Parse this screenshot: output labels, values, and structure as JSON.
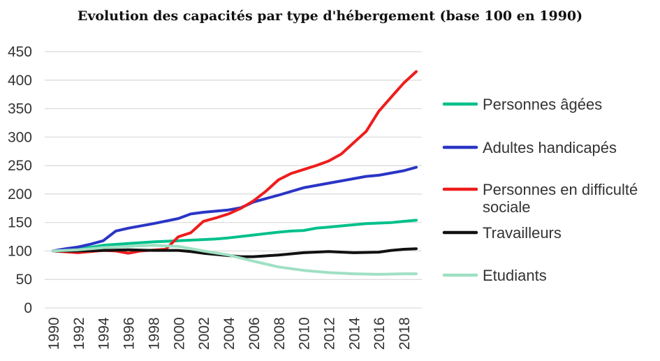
{
  "chart_data": {
    "type": "line",
    "title": "Evolution des capacités par type d'hébergement (base 100 en 1990)",
    "xlabel": "",
    "ylabel": "",
    "xlim": [
      1990,
      2019
    ],
    "ylim": [
      0,
      450
    ],
    "y_ticks": [
      0,
      50,
      100,
      150,
      200,
      250,
      300,
      350,
      400,
      450
    ],
    "x_tick_labels": [
      "1990",
      "1992",
      "1994",
      "1996",
      "1998",
      "2000",
      "2002",
      "2004",
      "2006",
      "2008",
      "2010",
      "2012",
      "2014",
      "2016",
      "2018"
    ],
    "grid": "horizontal",
    "legend_position": "right",
    "series": [
      {
        "name": "Personnes âgées",
        "legend_lines": [
          "Personnes âgées"
        ],
        "color": "#00c08b",
        "x": [
          1990,
          1992,
          1994,
          1996,
          1998,
          2000,
          2002,
          2003,
          2004,
          2006,
          2008,
          2009,
          2010,
          2011,
          2012,
          2014,
          2015,
          2016,
          2017,
          2018,
          2019
        ],
        "y": [
          100,
          103,
          110,
          113,
          116,
          118,
          120,
          121,
          123,
          128,
          133,
          135,
          136,
          140,
          142,
          146,
          148,
          149,
          150,
          152,
          154
        ]
      },
      {
        "name": "Adultes handicapés",
        "legend_lines": [
          "Adultes handicapés"
        ],
        "color": "#2a35c6",
        "x": [
          1990,
          1991,
          1992,
          1993,
          1994,
          1995,
          1996,
          1998,
          2000,
          2001,
          2002,
          2004,
          2005,
          2006,
          2008,
          2010,
          2012,
          2014,
          2015,
          2016,
          2018,
          2019
        ],
        "y": [
          100,
          104,
          107,
          112,
          118,
          135,
          140,
          148,
          157,
          165,
          168,
          172,
          176,
          186,
          198,
          211,
          219,
          227,
          231,
          233,
          241,
          247
        ]
      },
      {
        "name": "Personnes en difficulté sociale",
        "legend_lines": [
          "Personnes en difficulté",
          "sociale"
        ],
        "color": "#ee1c1c",
        "x": [
          1990,
          1992,
          1994,
          1995,
          1996,
          1997,
          1999,
          2000,
          2001,
          2002,
          2003,
          2004,
          2005,
          2006,
          2007,
          2008,
          2009,
          2010,
          2011,
          2012,
          2013,
          2014,
          2015,
          2016,
          2017,
          2018,
          2019
        ],
        "y": [
          100,
          97,
          101,
          100,
          96,
          100,
          103,
          125,
          132,
          152,
          158,
          165,
          175,
          188,
          205,
          225,
          236,
          243,
          250,
          258,
          270,
          290,
          310,
          345,
          370,
          395,
          415
        ]
      },
      {
        "name": "Travailleurs",
        "legend_lines": [
          "Travailleurs"
        ],
        "color": "#111111",
        "x": [
          1990,
          1992,
          1994,
          1996,
          1998,
          2000,
          2001,
          2002,
          2004,
          2005,
          2006,
          2008,
          2010,
          2012,
          2014,
          2016,
          2017,
          2018,
          2019
        ],
        "y": [
          100,
          100,
          101,
          102,
          101,
          101,
          99,
          96,
          92,
          90,
          90,
          93,
          97,
          99,
          97,
          98,
          101,
          103,
          104
        ]
      },
      {
        "name": "Etudiants",
        "legend_lines": [
          "Etudiants"
        ],
        "color": "#9fe0c3",
        "x": [
          1990,
          1992,
          1994,
          1996,
          1998,
          2000,
          2002,
          2004,
          2006,
          2008,
          2010,
          2012,
          2014,
          2016,
          2018,
          2019
        ],
        "y": [
          100,
          102,
          106,
          108,
          110,
          108,
          100,
          93,
          82,
          72,
          66,
          62,
          60,
          59,
          60,
          60
        ]
      }
    ]
  }
}
